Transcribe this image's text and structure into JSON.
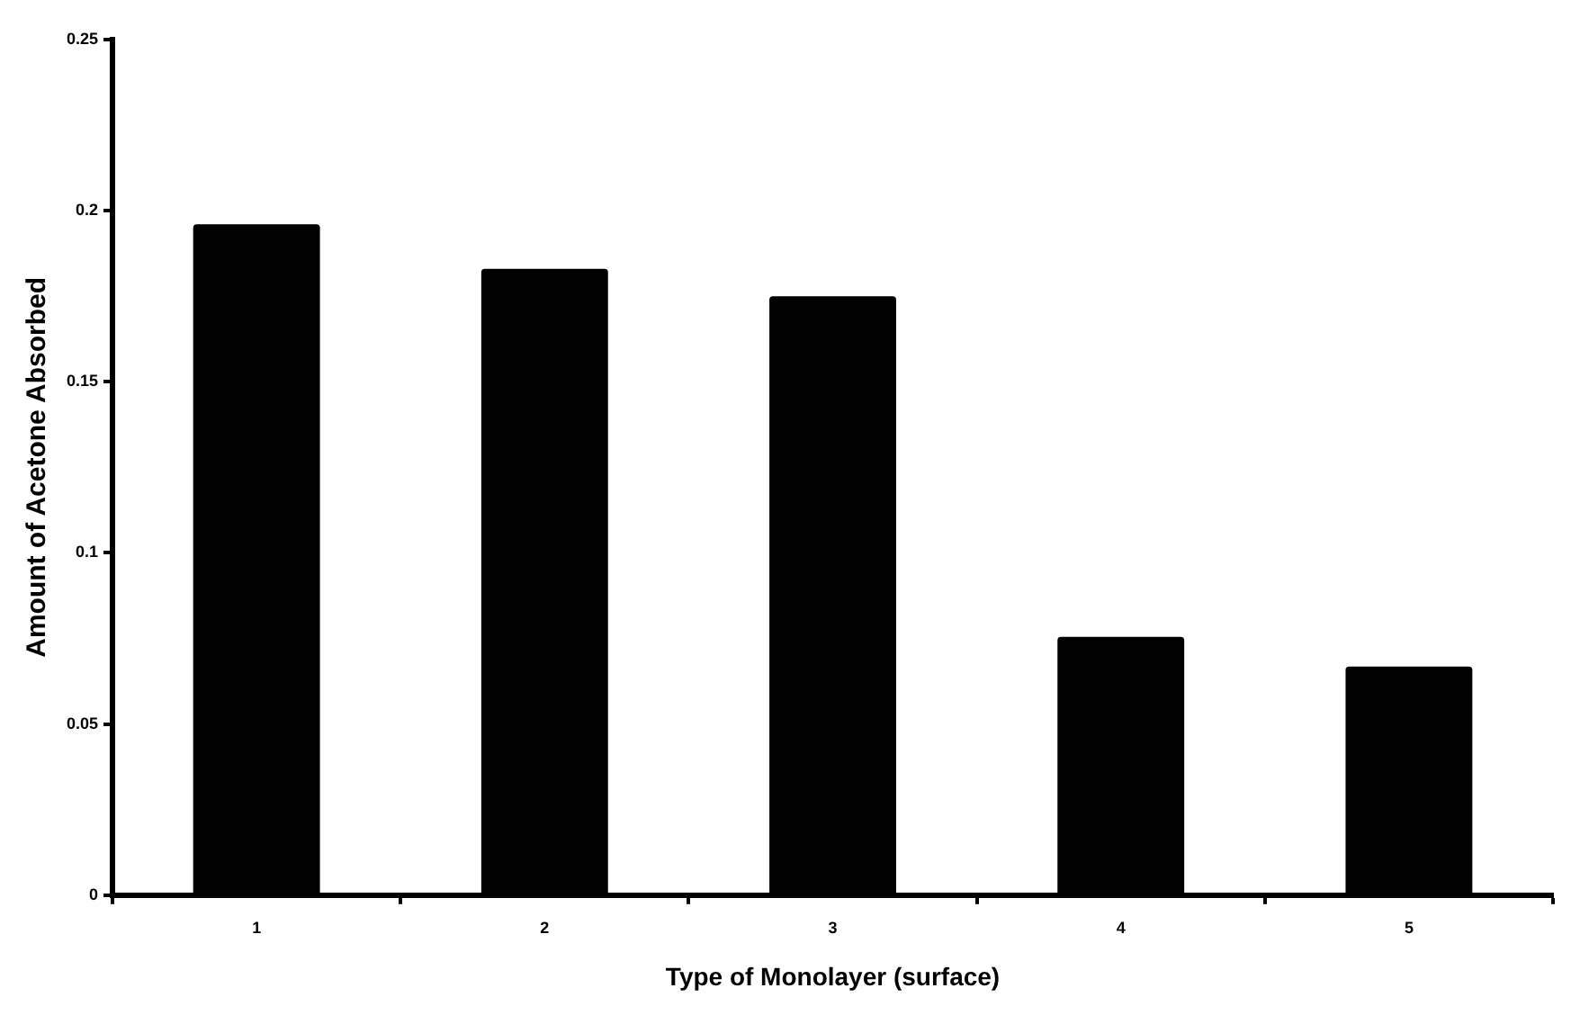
{
  "chart_data": {
    "type": "bar",
    "xlabel": "Type of Monolayer (surface)",
    "ylabel": "Amount of Acetone Absorbed",
    "categories": [
      "1",
      "2",
      "3",
      "4",
      "5"
    ],
    "values": [
      0.196,
      0.183,
      0.175,
      0.0755,
      0.0668
    ],
    "color": "#000000",
    "ylim": [
      0,
      0.25
    ],
    "yticks": [
      0,
      0.05,
      0.1,
      0.15,
      0.2,
      0.25
    ],
    "grid": false,
    "legend": false
  }
}
